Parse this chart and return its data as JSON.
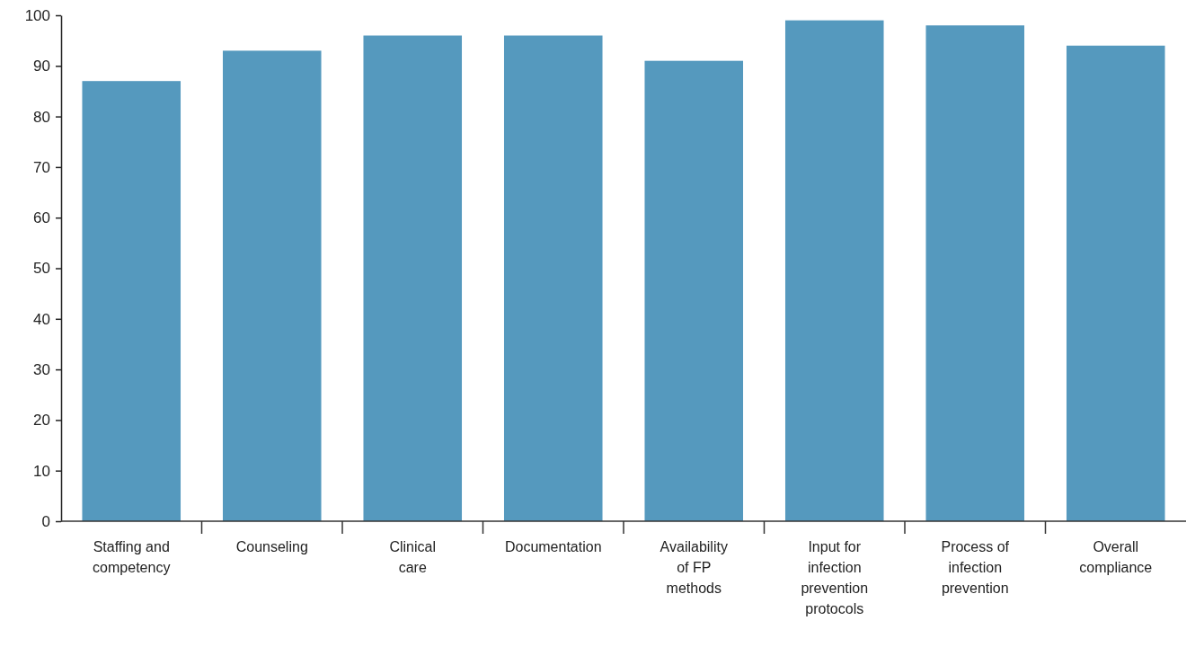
{
  "chart_data": {
    "type": "bar",
    "categories": [
      "Staffing and competency",
      "Counseling",
      "Clinical care",
      "Documentation",
      "Availability of FP methods",
      "Input for infection prevention protocols",
      "Process of infection prevention",
      "Overall compliance"
    ],
    "values": [
      87,
      93,
      96,
      96,
      91,
      99,
      98,
      94
    ],
    "color": "#5599be",
    "ylim": [
      0,
      100
    ],
    "yticks": [
      0,
      10,
      20,
      30,
      40,
      50,
      60,
      70,
      80,
      90,
      100
    ],
    "grid": false
  }
}
